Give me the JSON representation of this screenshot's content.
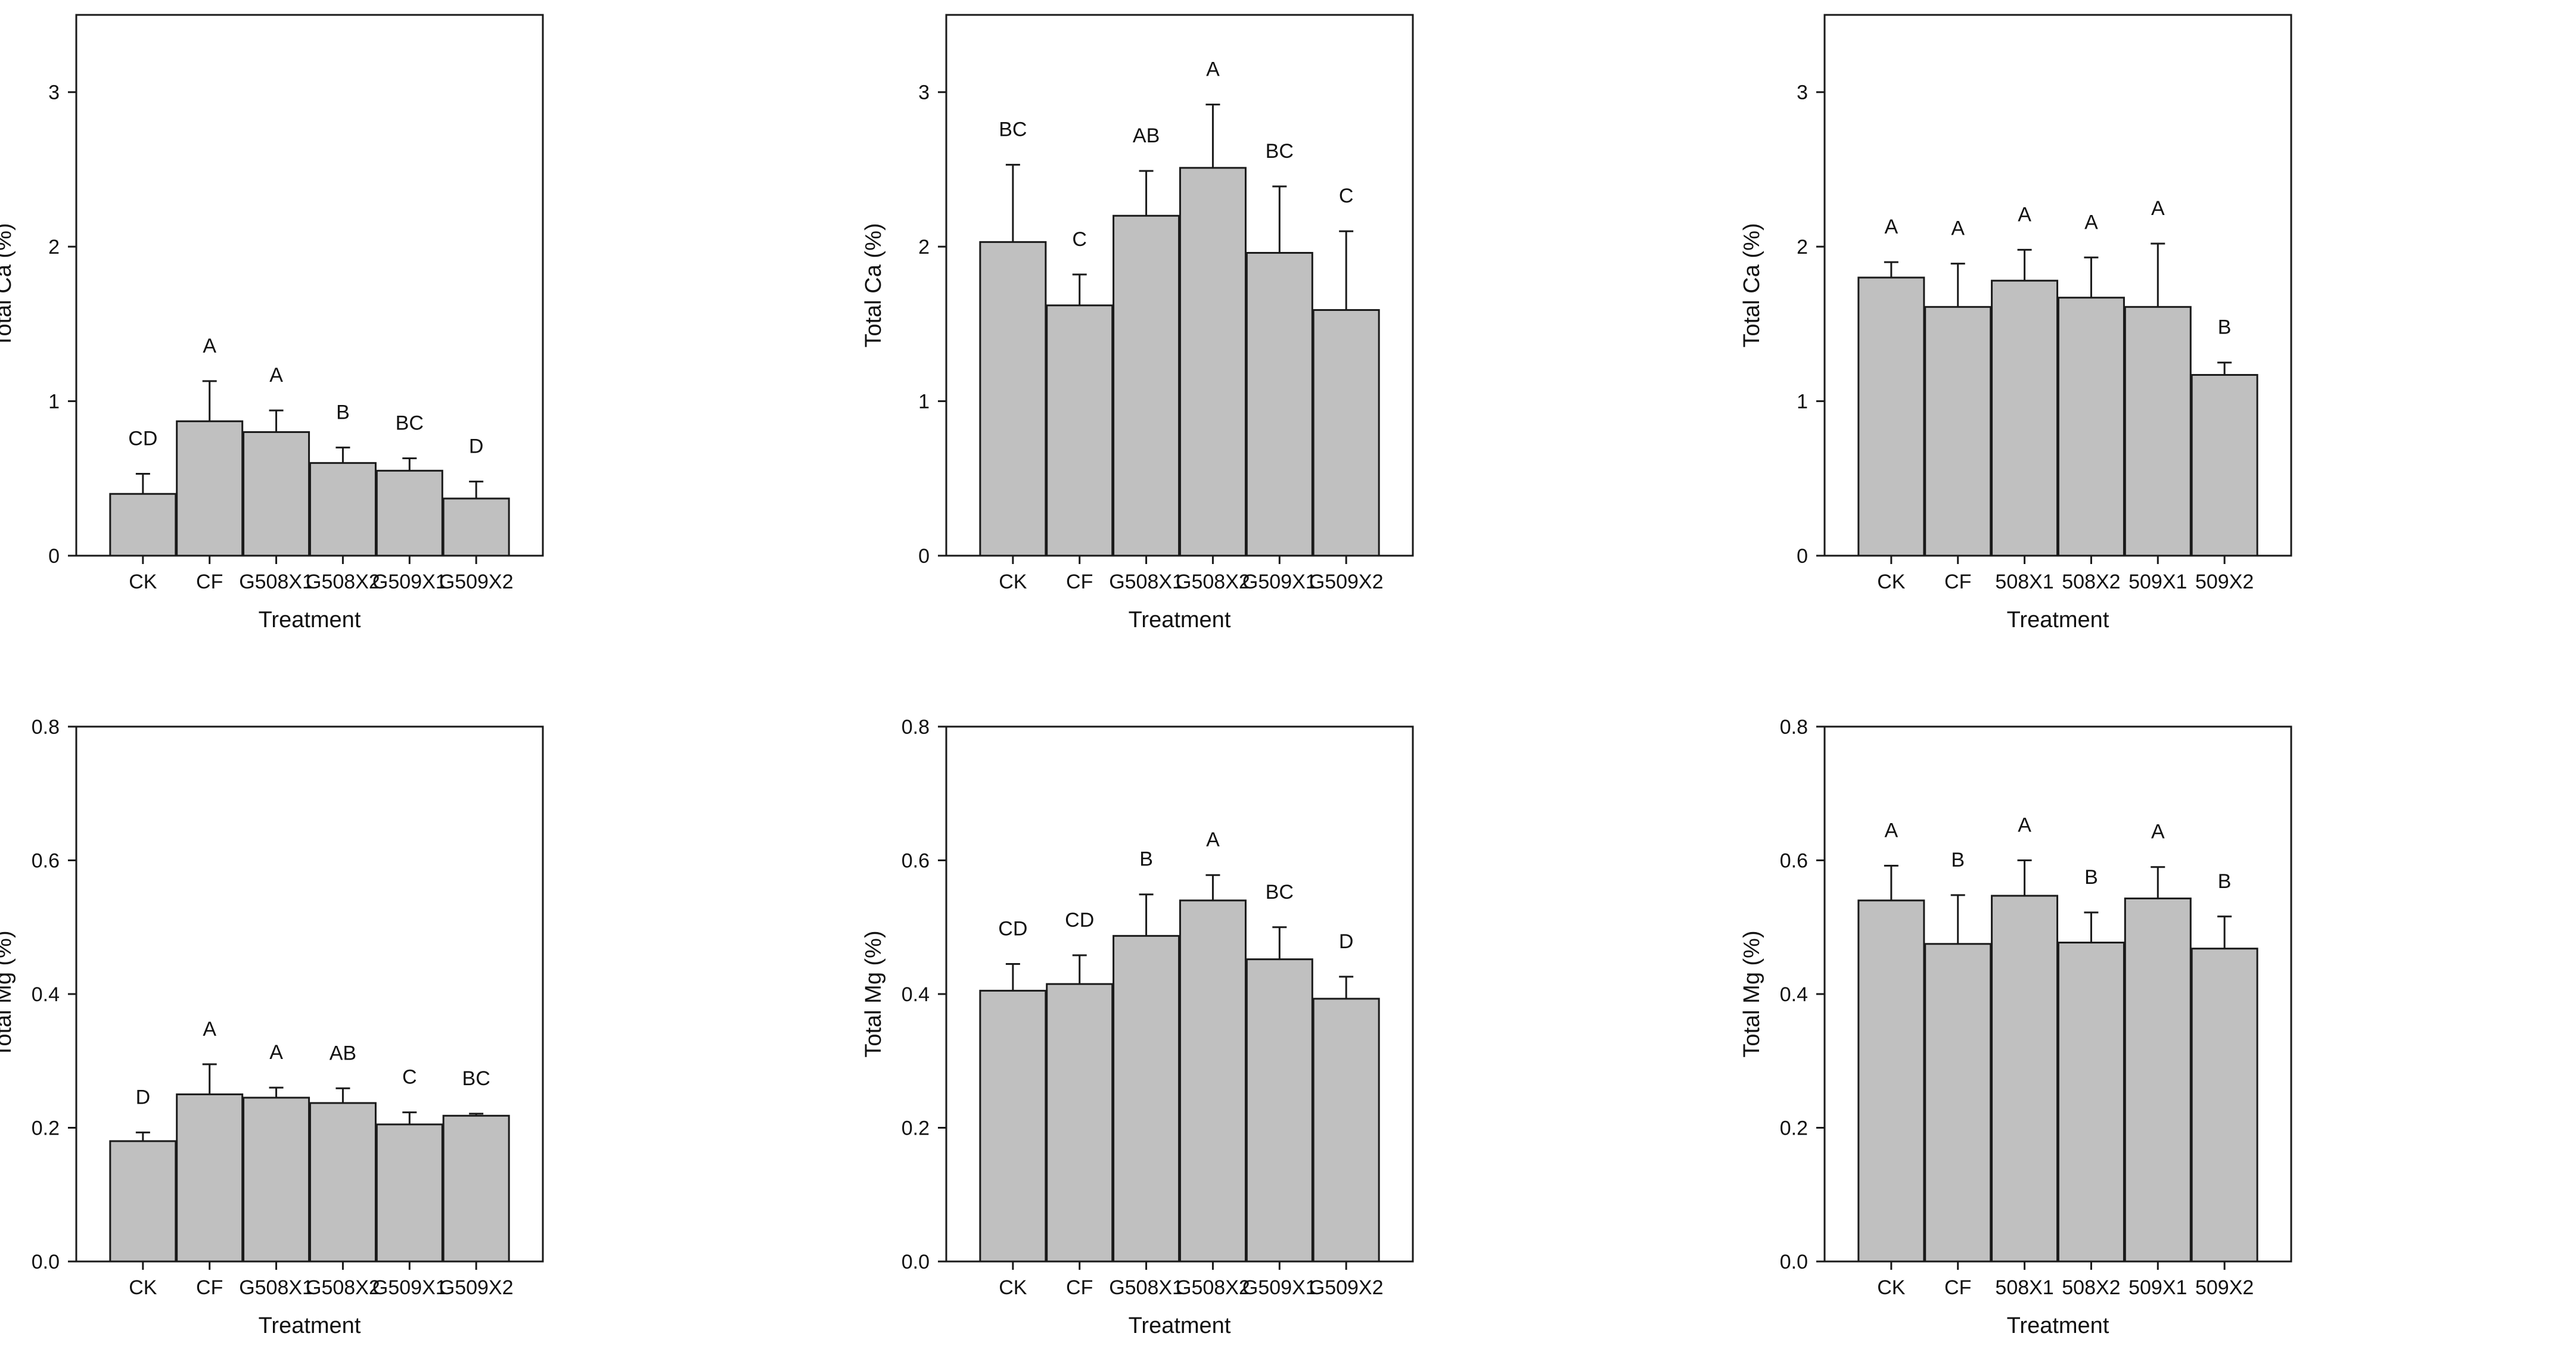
{
  "figure": {
    "bar_color": "#c0c0c0",
    "bar_stroke": "#1a1a1a",
    "axis_color": "#1a1a1a"
  },
  "chart_data": [
    {
      "id": "ca-1",
      "type": "bar",
      "categories": [
        "CK",
        "CF",
        "G508X1",
        "G508X2",
        "G509X1",
        "G509X2"
      ],
      "values": [
        0.4,
        0.87,
        0.8,
        0.6,
        0.55,
        0.37
      ],
      "errors": [
        0.13,
        0.26,
        0.14,
        0.1,
        0.08,
        0.11
      ],
      "letters": [
        "CD",
        "A",
        "A",
        "B",
        "BC",
        "D"
      ],
      "ylim": [
        0,
        3.5
      ],
      "yticks": [
        "0",
        "1",
        "2",
        "3"
      ],
      "ytick_values": [
        0,
        1,
        2,
        3
      ],
      "xlabel": "Treatment",
      "ylabel": "Total Ca (%)"
    },
    {
      "id": "ca-2",
      "type": "bar",
      "categories": [
        "CK",
        "CF",
        "G508X1",
        "G508X2",
        "G509X1",
        "G509X2"
      ],
      "values": [
        2.03,
        1.62,
        2.2,
        2.51,
        1.96,
        1.59
      ],
      "errors": [
        0.5,
        0.2,
        0.29,
        0.41,
        0.43,
        0.51
      ],
      "letters": [
        "BC",
        "C",
        "AB",
        "A",
        "BC",
        "C"
      ],
      "ylim": [
        0,
        3.5
      ],
      "yticks": [
        "0",
        "1",
        "2",
        "3"
      ],
      "ytick_values": [
        0,
        1,
        2,
        3
      ],
      "xlabel": "Treatment",
      "ylabel": "Total Ca (%)"
    },
    {
      "id": "ca-3",
      "type": "bar",
      "categories": [
        "CK",
        "CF",
        "508X1",
        "508X2",
        "509X1",
        "509X2"
      ],
      "values": [
        1.8,
        1.61,
        1.78,
        1.67,
        1.61,
        1.17
      ],
      "errors": [
        0.1,
        0.28,
        0.2,
        0.26,
        0.41,
        0.08
      ],
      "letters": [
        "A",
        "A",
        "A",
        "A",
        "A",
        "B"
      ],
      "ylim": [
        0,
        3.5
      ],
      "yticks": [
        "0",
        "1",
        "2",
        "3"
      ],
      "ytick_values": [
        0,
        1,
        2,
        3
      ],
      "xlabel": "Treatment",
      "ylabel": "Total Ca (%)"
    },
    {
      "id": "mg-1",
      "type": "bar",
      "categories": [
        "CK",
        "CF",
        "G508X1",
        "G508X2",
        "G509X1",
        "G509X2"
      ],
      "values": [
        0.18,
        0.25,
        0.245,
        0.237,
        0.205,
        0.218
      ],
      "errors": [
        0.013,
        0.045,
        0.015,
        0.022,
        0.018,
        0.003
      ],
      "letters": [
        "D",
        "A",
        "A",
        "AB",
        "C",
        "BC"
      ],
      "ylim": [
        0,
        0.8
      ],
      "yticks": [
        "0.0",
        "0.2",
        "0.4",
        "0.6",
        "0.8"
      ],
      "ytick_values": [
        0,
        0.2,
        0.4,
        0.6,
        0.8
      ],
      "xlabel": "Treatment",
      "ylabel": "Total Mg (%)"
    },
    {
      "id": "mg-2",
      "type": "bar",
      "categories": [
        "CK",
        "CF",
        "G508X1",
        "G508X2",
        "G509X1",
        "G509X2"
      ],
      "values": [
        0.405,
        0.415,
        0.487,
        0.54,
        0.452,
        0.393
      ],
      "errors": [
        0.04,
        0.043,
        0.062,
        0.038,
        0.048,
        0.033
      ],
      "letters": [
        "CD",
        "CD",
        "B",
        "A",
        "BC",
        "D"
      ],
      "ylim": [
        0,
        0.8
      ],
      "yticks": [
        "0.0",
        "0.2",
        "0.4",
        "0.6",
        "0.8"
      ],
      "ytick_values": [
        0,
        0.2,
        0.4,
        0.6,
        0.8
      ],
      "xlabel": "Treatment",
      "ylabel": "Total Mg (%)"
    },
    {
      "id": "mg-3",
      "type": "bar",
      "categories": [
        "CK",
        "CF",
        "508X1",
        "508X2",
        "509X1",
        "509X2"
      ],
      "values": [
        0.54,
        0.475,
        0.547,
        0.477,
        0.543,
        0.468
      ],
      "errors": [
        0.052,
        0.073,
        0.053,
        0.045,
        0.047,
        0.048
      ],
      "letters": [
        "A",
        "B",
        "A",
        "B",
        "A",
        "B"
      ],
      "ylim": [
        0,
        0.8
      ],
      "yticks": [
        "0.0",
        "0.2",
        "0.4",
        "0.6",
        "0.8"
      ],
      "ytick_values": [
        0,
        0.2,
        0.4,
        0.6,
        0.8
      ],
      "xlabel": "Treatment",
      "ylabel": "Total Mg (%)"
    }
  ]
}
